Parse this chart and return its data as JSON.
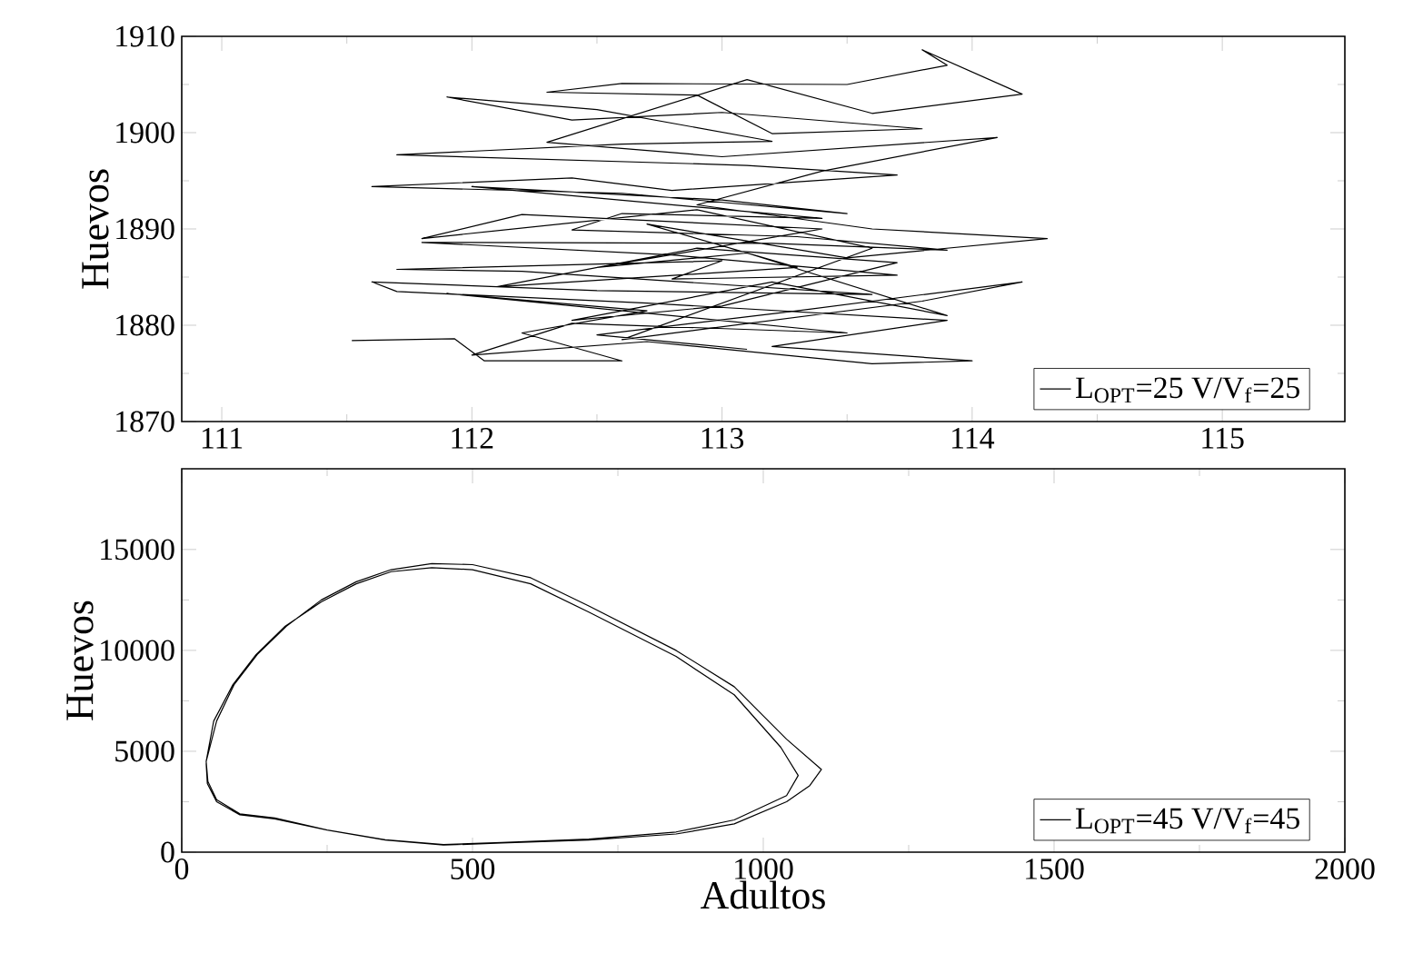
{
  "chart_data": [
    {
      "type": "line",
      "ylabel": "Huevos",
      "xlim": [
        110.84,
        115.49
      ],
      "ylim": [
        1870,
        1910
      ],
      "xticks": [
        111,
        112,
        113,
        114,
        115
      ],
      "yticks": [
        1870,
        1880,
        1890,
        1900,
        1910
      ],
      "legend": "bottom right",
      "grid": false,
      "series": [
        {
          "name": "L$_{OPT}$=25 V/V$_{f}$=25",
          "color": "#000000",
          "x": [
            111.52,
            111.93,
            112.05,
            112.6,
            112.2,
            112.7,
            111.9,
            113.5,
            112.4,
            112.0,
            112.7,
            113.6,
            114.0,
            113.2,
            113.9,
            112.7,
            111.7,
            111.6,
            112.5,
            113.6,
            112.2,
            111.7,
            113.0,
            112.8,
            113.7,
            112.8,
            111.8,
            113.2,
            113.9,
            113.3,
            112.4,
            112.6,
            113.4,
            112.0,
            113.0,
            113.5,
            112.6,
            111.6,
            112.4,
            112.8,
            113.7,
            113.1,
            111.7,
            112.6,
            113.2,
            112.5,
            111.9,
            112.4,
            113.0,
            113.8,
            113.2,
            112.9,
            112.3,
            112.6,
            113.5,
            113.9,
            113.8,
            114.2,
            113.6,
            113.1,
            112.3,
            113.0,
            114.1,
            113.4,
            112.9,
            113.6,
            114.3,
            113.5,
            112.7,
            113.3,
            112.1,
            112.9,
            113.7,
            113.0,
            112.4,
            113.2,
            113.9,
            113.1,
            112.5,
            113.4,
            112.2,
            111.8,
            112.9,
            113.6,
            112.6,
            113.8,
            114.2,
            113.3,
            112.5,
            113.1
          ],
          "values": [
            1878.4,
            1878.6,
            1876.3,
            1876.3,
            1879.2,
            1881.5,
            1883.3,
            1879.2,
            1880.2,
            1876.9,
            1878.3,
            1876.0,
            1876.3,
            1877.8,
            1880.5,
            1882.3,
            1883.5,
            1884.5,
            1883.6,
            1883.2,
            1885.6,
            1885.8,
            1886.7,
            1884.8,
            1885.2,
            1887.3,
            1888.6,
            1888.5,
            1887.8,
            1889.2,
            1889.9,
            1891.6,
            1891.1,
            1894.4,
            1893.0,
            1891.6,
            1893.7,
            1894.4,
            1895.3,
            1894.0,
            1895.6,
            1896.6,
            1897.7,
            1898.8,
            1899.1,
            1902.4,
            1903.7,
            1901.3,
            1902.1,
            1900.4,
            1899.9,
            1903.9,
            1904.2,
            1905.1,
            1905.0,
            1907.0,
            1908.6,
            1904.0,
            1902.0,
            1905.5,
            1899.0,
            1897.5,
            1899.5,
            1896.0,
            1892.5,
            1890.0,
            1889.0,
            1887.0,
            1890.5,
            1886.0,
            1884.0,
            1888.0,
            1886.5,
            1882.0,
            1880.5,
            1884.5,
            1881.0,
            1887.5,
            1886.0,
            1890.0,
            1891.5,
            1889.0,
            1892.0,
            1888.0,
            1878.5,
            1882.5,
            1884.5,
            1881.5,
            1879.0,
            1877.5
          ]
        }
      ]
    },
    {
      "type": "line",
      "xlabel": "Adultos",
      "ylabel": "Huevos",
      "xlim": [
        0,
        2000
      ],
      "ylim": [
        0,
        19000
      ],
      "xticks": [
        0,
        500,
        1000,
        1500,
        2000
      ],
      "yticks": [
        0,
        5000,
        10000,
        15000
      ],
      "legend": "bottom right",
      "grid": false,
      "series": [
        {
          "name": "L$_{OPT}$=45 V/V$_{f}$=45",
          "color": "#000000",
          "x": [
            42,
            60,
            90,
            130,
            180,
            240,
            300,
            360,
            430,
            500,
            600,
            700,
            850,
            950,
            1040,
            1100,
            1080,
            1040,
            950,
            850,
            700,
            550,
            450,
            350,
            250,
            160,
            100,
            60,
            45,
            42,
            55,
            88,
            128,
            178,
            240,
            300,
            360,
            430,
            500,
            600,
            700,
            850,
            950,
            1030,
            1060,
            1040,
            950,
            850,
            700,
            550,
            450,
            350,
            250,
            160,
            100,
            60,
            44,
            42
          ],
          "values": [
            4500,
            6500,
            8300,
            9800,
            11200,
            12500,
            13400,
            14000,
            14300,
            14250,
            13600,
            12200,
            10000,
            8200,
            5600,
            4100,
            3300,
            2500,
            1400,
            900,
            600,
            450,
            350,
            600,
            1100,
            1700,
            1900,
            2600,
            3500,
            4500,
            6500,
            8300,
            9800,
            11200,
            12400,
            13300,
            13900,
            14100,
            14000,
            13300,
            11900,
            9700,
            7800,
            5200,
            3800,
            2800,
            1600,
            1000,
            650,
            480,
            380,
            620,
            1100,
            1650,
            1850,
            2500,
            3400,
            4400
          ]
        }
      ]
    }
  ]
}
